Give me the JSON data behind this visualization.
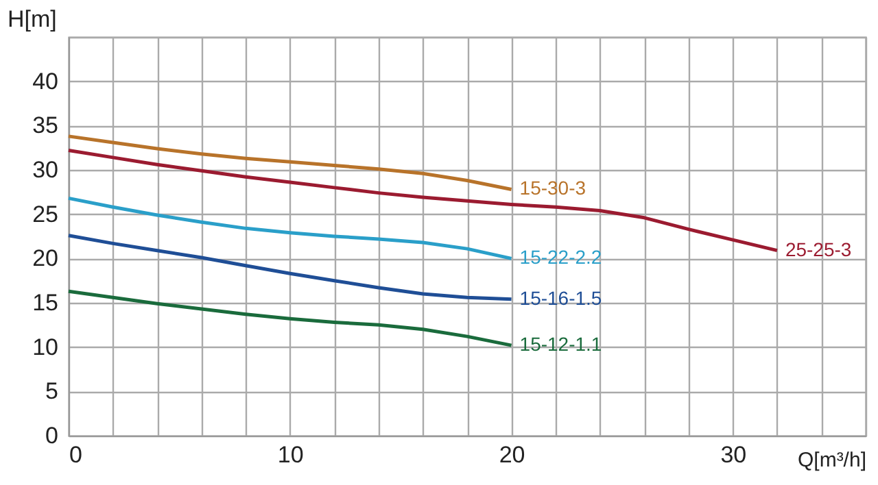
{
  "chart_data": {
    "type": "line",
    "xlabel": "Q[m³/h]",
    "ylabel": "H[m]",
    "xlim": [
      0,
      36
    ],
    "ylim": [
      0,
      45
    ],
    "xticks": [
      0,
      {
        "value": 2,
        "label": null
      },
      {
        "value": 4,
        "label": null
      },
      {
        "value": 6,
        "label": null
      },
      {
        "value": 8,
        "label": null
      },
      10,
      {
        "value": 12,
        "label": null
      },
      {
        "value": 14,
        "label": null
      },
      {
        "value": 16,
        "label": null
      },
      {
        "value": 18,
        "label": null
      },
      20,
      {
        "value": 22,
        "label": null
      },
      {
        "value": 24,
        "label": null
      },
      {
        "value": 26,
        "label": null
      },
      {
        "value": 28,
        "label": null
      },
      30,
      {
        "value": 32,
        "label": null
      },
      {
        "value": 34,
        "label": null
      },
      {
        "value": 36,
        "label": null
      }
    ],
    "yticks": [
      0,
      5,
      10,
      15,
      20,
      25,
      30,
      35,
      40,
      {
        "value": 45,
        "label": null
      }
    ],
    "grid": true,
    "marker": "none",
    "line_style": "solid",
    "series": [
      {
        "name": "15-30-3",
        "color": "#b8732a",
        "x": [
          0,
          2,
          4,
          6,
          8,
          10,
          12,
          14,
          16,
          18,
          20
        ],
        "values": [
          33.8,
          33.1,
          32.4,
          31.8,
          31.3,
          30.9,
          30.5,
          30.1,
          29.6,
          28.8,
          27.8
        ]
      },
      {
        "name": "25-25-3",
        "color": "#9b1b30",
        "x": [
          0,
          2,
          4,
          6,
          8,
          10,
          12,
          14,
          16,
          18,
          20,
          22,
          24,
          26,
          28,
          30,
          32
        ],
        "values": [
          32.2,
          31.4,
          30.6,
          29.9,
          29.2,
          28.6,
          28.0,
          27.4,
          26.9,
          26.5,
          26.1,
          25.8,
          25.4,
          24.6,
          23.3,
          22.1,
          20.9
        ]
      },
      {
        "name": "15-22-2.2",
        "color": "#2a9fc9",
        "x": [
          0,
          2,
          4,
          6,
          8,
          10,
          12,
          14,
          16,
          18,
          20
        ],
        "values": [
          26.8,
          25.8,
          24.9,
          24.1,
          23.4,
          22.9,
          22.5,
          22.2,
          21.8,
          21.1,
          20.0
        ]
      },
      {
        "name": "15-16-1.5",
        "color": "#1f4e96",
        "x": [
          0,
          2,
          4,
          6,
          8,
          10,
          12,
          14,
          16,
          18,
          20
        ],
        "values": [
          22.6,
          21.7,
          20.9,
          20.1,
          19.2,
          18.3,
          17.5,
          16.7,
          16.0,
          15.6,
          15.4
        ]
      },
      {
        "name": "15-12-1.1",
        "color": "#1a6b3c",
        "x": [
          0,
          2,
          4,
          6,
          8,
          10,
          12,
          14,
          16,
          18,
          20
        ],
        "values": [
          16.3,
          15.6,
          14.9,
          14.3,
          13.7,
          13.2,
          12.8,
          12.5,
          12.0,
          11.2,
          10.2
        ]
      }
    ]
  }
}
